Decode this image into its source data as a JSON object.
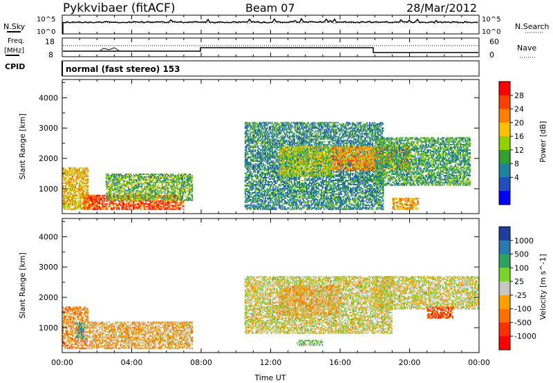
{
  "header": {
    "station": "Pykkvibaer (fitACF)",
    "beam": "Beam 07",
    "date": "28/Mar/2012"
  },
  "strips": {
    "nsky_label": "N.Sky",
    "nsearch_label": "N.Search",
    "nsky_ticks": [
      "10^5",
      "10^0"
    ],
    "nsearch_ticks": [
      "10^5",
      "10^0"
    ],
    "freq_label_1": "Freq.",
    "freq_label_2": "[MHz]",
    "freq_ticks": [
      "18",
      "8"
    ],
    "nave_label": "Nave",
    "nave_ticks": [
      "60",
      "0"
    ],
    "cpid_label": "CPID",
    "cpid_text": "normal (fast stereo) 153"
  },
  "panels": {
    "y_label": "Slant Range [km]",
    "y_ticks": [
      "4000",
      "3000",
      "2000",
      "1000"
    ],
    "x_ticks": [
      "00:00",
      "04:00",
      "08:00",
      "12:00",
      "16:00",
      "20:00",
      "00:00"
    ],
    "x_label": "Time UT"
  },
  "power_scale": {
    "label": "Power [dB]",
    "ticks": [
      "28",
      "24",
      "20",
      "16",
      "12",
      "8",
      "4"
    ],
    "colors": [
      "#ff0000",
      "#ff4000",
      "#ff8000",
      "#ffc000",
      "#8fd000",
      "#30a030",
      "#2080a0",
      "#1f4fbf",
      "#0000ff"
    ]
  },
  "velocity_scale": {
    "label": "Velocity [m s^-1]",
    "ticks": [
      "1000",
      "500",
      "100",
      "25",
      "-25",
      "-100",
      "-500",
      "-1000"
    ],
    "colors": [
      "#1d3fa0",
      "#2c78b0",
      "#30a060",
      "#7bd22a",
      "#c8c8c0",
      "#ffa000",
      "#ff7000",
      "#ff3000",
      "#ff0000"
    ]
  },
  "chart_data": [
    {
      "type": "heatmap",
      "title": "Power",
      "xlabel": "Time UT",
      "ylabel": "Slant Range [km]",
      "xlim": [
        0,
        24
      ],
      "ylim": [
        180,
        4600
      ],
      "colorbar": {
        "label": "Power [dB]",
        "range": [
          0,
          32
        ]
      },
      "regions": [
        {
          "t": [
            0.0,
            1.5
          ],
          "r": [
            300,
            1700
          ],
          "value": 20
        },
        {
          "t": [
            1.2,
            2.0
          ],
          "r": [
            300,
            800
          ],
          "value": 24
        },
        {
          "t": [
            1.5,
            7.0
          ],
          "r": [
            300,
            800
          ],
          "value": 26
        },
        {
          "t": [
            2.5,
            7.5
          ],
          "r": [
            600,
            1500
          ],
          "value": 14
        },
        {
          "t": [
            10.5,
            18.5
          ],
          "r": [
            300,
            3200
          ],
          "value": 10
        },
        {
          "t": [
            12.5,
            15.5
          ],
          "r": [
            1400,
            2400
          ],
          "value": 16
        },
        {
          "t": [
            15.5,
            20.0
          ],
          "r": [
            1600,
            2400
          ],
          "value": 22
        },
        {
          "t": [
            18.0,
            23.5
          ],
          "r": [
            1100,
            2700
          ],
          "value": 12
        },
        {
          "t": [
            19.0,
            20.5
          ],
          "r": [
            300,
            700
          ],
          "value": 22
        }
      ]
    },
    {
      "type": "heatmap",
      "title": "Velocity",
      "xlabel": "Time UT",
      "ylabel": "Slant Range [km]",
      "xlim": [
        0,
        24
      ],
      "ylim": [
        180,
        4600
      ],
      "colorbar": {
        "label": "Velocity [m s^-1]",
        "range": [
          -1000,
          1000
        ]
      },
      "regions": [
        {
          "t": [
            0.0,
            1.5
          ],
          "r": [
            300,
            1700
          ],
          "value": -300
        },
        {
          "t": [
            0.8,
            1.3
          ],
          "r": [
            600,
            1200
          ],
          "value": 400
        },
        {
          "t": [
            1.5,
            7.5
          ],
          "r": [
            300,
            1200
          ],
          "value": -200
        },
        {
          "t": [
            10.5,
            19.0
          ],
          "r": [
            800,
            2700
          ],
          "value": 0
        },
        {
          "t": [
            12.5,
            16.0
          ],
          "r": [
            1400,
            2400
          ],
          "value": -150
        },
        {
          "t": [
            13.5,
            15.0
          ],
          "r": [
            400,
            600
          ],
          "value": 200
        },
        {
          "t": [
            18.0,
            24.0
          ],
          "r": [
            1600,
            2700
          ],
          "value": 0
        },
        {
          "t": [
            21.0,
            22.5
          ],
          "r": [
            1300,
            1700
          ],
          "value": -600
        }
      ]
    }
  ]
}
